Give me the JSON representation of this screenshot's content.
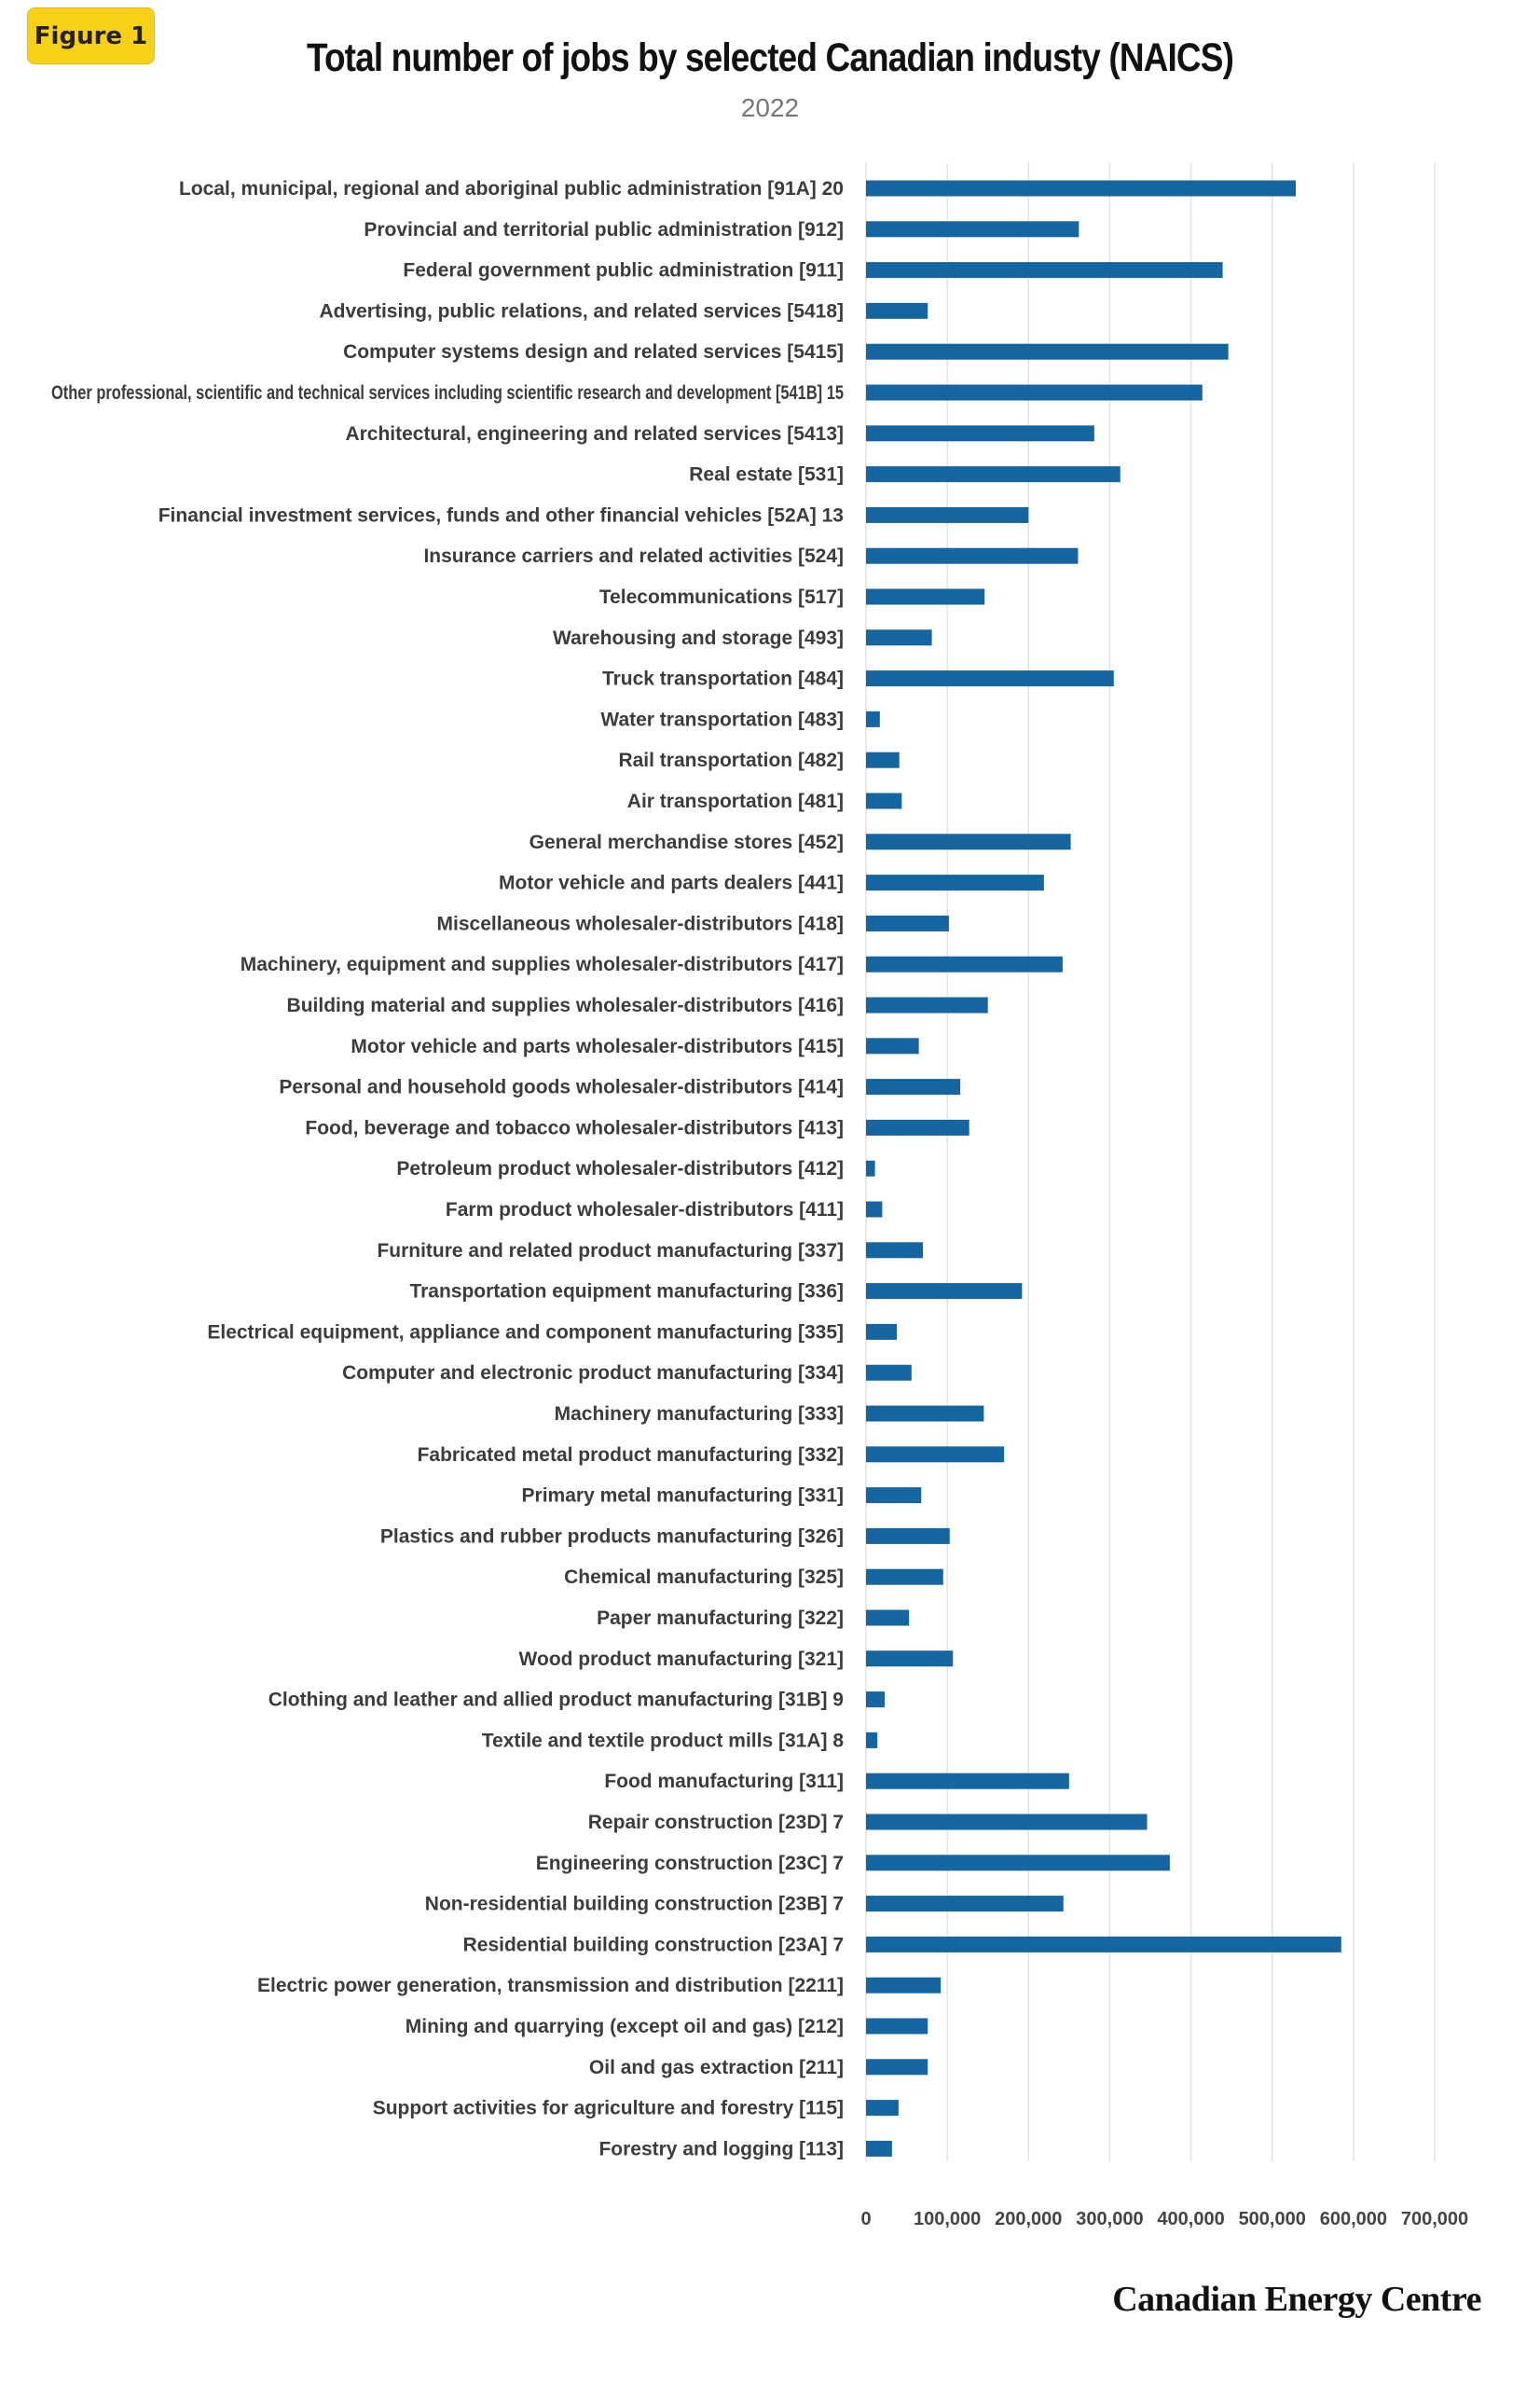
{
  "badge": {
    "label": "Figure 1"
  },
  "brand": {
    "label": "Canadian Energy Centre"
  },
  "colors": {
    "bar": "#1465a0",
    "grid": "#e2e2e2",
    "badge": "#f7d117"
  },
  "chart_data": {
    "type": "bar",
    "orientation": "horizontal",
    "title": "Total number of jobs by selected Canadian industy (NAICS)",
    "subtitle": "2022",
    "xlabel": "",
    "ylabel": "",
    "xlim": [
      0,
      700000
    ],
    "xticks": [
      0,
      100000,
      200000,
      300000,
      400000,
      500000,
      600000,
      700000
    ],
    "xtick_labels": [
      "0",
      "100,000",
      "200,000",
      "300,000",
      "400,000",
      "500,000",
      "600,000",
      "700,000"
    ],
    "grid": "vertical",
    "legend": "none",
    "categories": [
      "Local, municipal, regional and aboriginal public administration [91A] 20",
      "Provincial and territorial public administration [912]",
      "Federal government public administration [911]",
      "Advertising, public relations, and related services [5418]",
      "Computer systems design and related services [5415]",
      "Other professional, scientific and technical services including scientific research and development [541B] 15",
      "Architectural, engineering and related services [5413]",
      "Real estate [531]",
      "Financial investment services, funds and other financial vehicles [52A] 13",
      "Insurance carriers and related activities [524]",
      "Telecommunications [517]",
      "Warehousing and storage [493]",
      "Truck transportation [484]",
      "Water transportation [483]",
      "Rail transportation [482]",
      "Air transportation [481]",
      "General merchandise stores [452]",
      "Motor vehicle and parts dealers [441]",
      "Miscellaneous wholesaler-distributors [418]",
      "Machinery, equipment and supplies wholesaler-distributors [417]",
      "Building material and supplies wholesaler-distributors [416]",
      "Motor vehicle and parts wholesaler-distributors [415]",
      "Personal and household goods wholesaler-distributors [414]",
      "Food, beverage and tobacco wholesaler-distributors [413]",
      "Petroleum product wholesaler-distributors [412]",
      "Farm product wholesaler-distributors [411]",
      "Furniture and related product manufacturing [337]",
      "Transportation equipment manufacturing [336]",
      "Electrical equipment, appliance and component manufacturing [335]",
      "Computer and electronic product manufacturing [334]",
      "Machinery manufacturing [333]",
      "Fabricated metal product manufacturing [332]",
      "Primary metal manufacturing [331]",
      "Plastics and rubber products manufacturing [326]",
      "Chemical manufacturing [325]",
      "Paper manufacturing [322]",
      "Wood product manufacturing [321]",
      "Clothing and leather and allied product manufacturing [31B] 9",
      "Textile and textile product mills [31A] 8",
      "Food manufacturing [311]",
      "Repair construction [23D] 7",
      "Engineering construction [23C] 7",
      "Non-residential building construction [23B] 7",
      "Residential building construction [23A] 7",
      "Electric power generation, transmission and distribution [2211]",
      "Mining and quarrying (except oil and gas) [212]",
      "Oil and gas extraction [211]",
      "Support activities for agriculture and forestry [115]",
      "Forestry and logging [113]"
    ],
    "values": [
      529000,
      262000,
      439000,
      76000,
      446000,
      414000,
      281000,
      313000,
      200000,
      261000,
      146000,
      81000,
      305000,
      17000,
      41000,
      44000,
      252000,
      219000,
      102000,
      242000,
      150000,
      65000,
      116000,
      127000,
      11000,
      20000,
      70000,
      192000,
      38000,
      56000,
      145000,
      170000,
      68000,
      103000,
      95000,
      53000,
      107000,
      23000,
      14000,
      250000,
      346000,
      374000,
      243000,
      585000,
      92000,
      76000,
      76000,
      40000,
      32000
    ]
  }
}
